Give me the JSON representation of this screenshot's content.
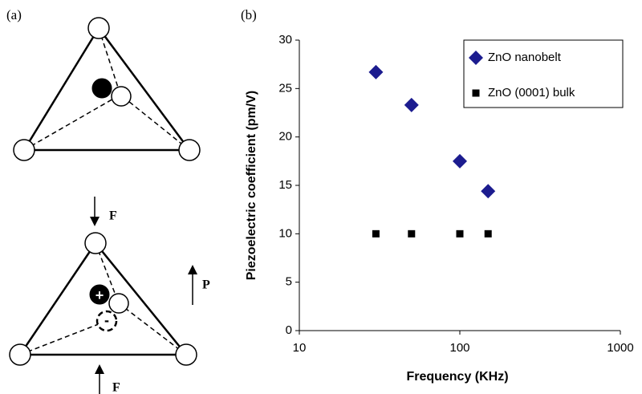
{
  "diagram": {
    "panel_a": "(a)",
    "panel_b": "(b)",
    "force_top": "F",
    "force_bottom": "F",
    "polarization": "P",
    "plus": "+",
    "minus": "-"
  },
  "chart_data": {
    "type": "scatter",
    "xlabel": "Frequency  (KHz)",
    "ylabel": "Piezoelectric coefficient (pm/V)",
    "xscale": "log",
    "xlim": [
      10,
      1000
    ],
    "xticks": [
      10,
      100,
      1000
    ],
    "ylim": [
      0,
      30
    ],
    "yticks": [
      0,
      5,
      10,
      15,
      20,
      25,
      30
    ],
    "legend": "upper right",
    "series": [
      {
        "name": "ZnO nanobelt",
        "color": "#1c1c8f",
        "marker": "diamond",
        "x": [
          30,
          50,
          100,
          150
        ],
        "values": [
          26.7,
          23.3,
          17.5,
          14.4
        ]
      },
      {
        "name": "ZnO (0001) bulk",
        "color": "#000000",
        "marker": "square",
        "x": [
          30,
          50,
          100,
          150
        ],
        "values": [
          10,
          10,
          10,
          10
        ]
      }
    ]
  }
}
